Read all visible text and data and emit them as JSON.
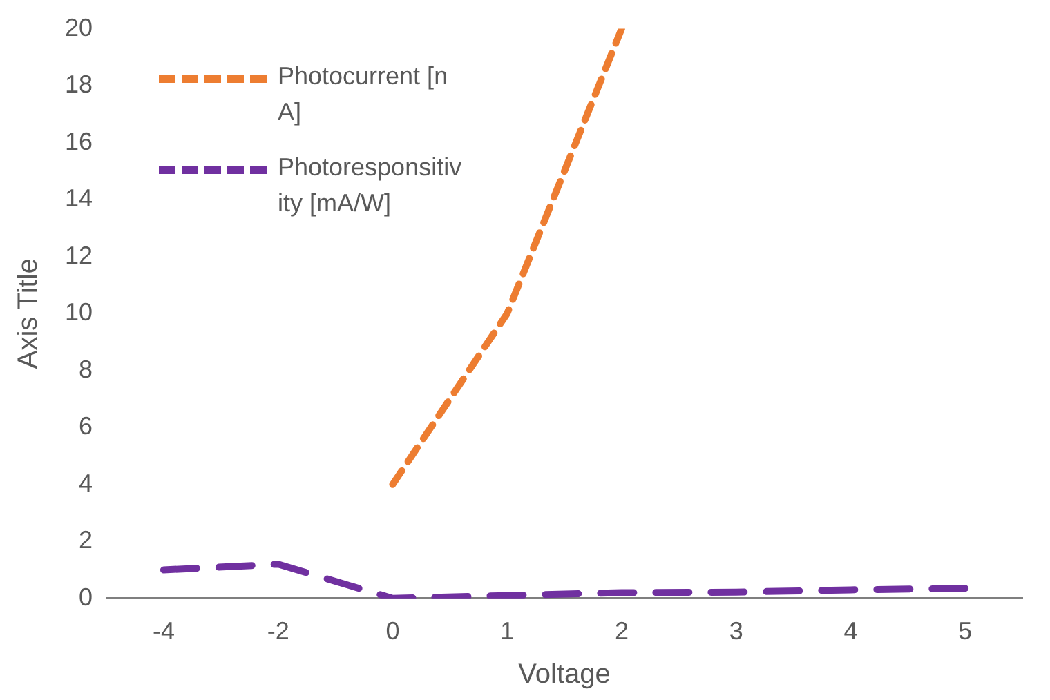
{
  "chart_data": {
    "type": "line",
    "xlabel": "Voltage",
    "ylabel": "Axis Title",
    "categories": [
      "-4",
      "-2",
      "0",
      "1",
      "2",
      "3",
      "4",
      "5"
    ],
    "series": [
      {
        "name": "Photocurrent [nA]",
        "color": "#ed7d31",
        "values": [
          null,
          null,
          4,
          10,
          20,
          null,
          null,
          null
        ],
        "line_style": "dashed"
      },
      {
        "name": "Photoresponsitivity [mA/W]",
        "color": "#7030a0",
        "values": [
          1.0,
          1.2,
          0,
          0.1,
          0.2,
          0.22,
          0.3,
          0.35
        ],
        "line_style": "dashed"
      }
    ],
    "ylim": [
      0,
      20
    ],
    "yticks": [
      0,
      2,
      4,
      6,
      8,
      10,
      12,
      14,
      16,
      18,
      20
    ],
    "grid": false,
    "legend": "top left",
    "marker": "none"
  }
}
